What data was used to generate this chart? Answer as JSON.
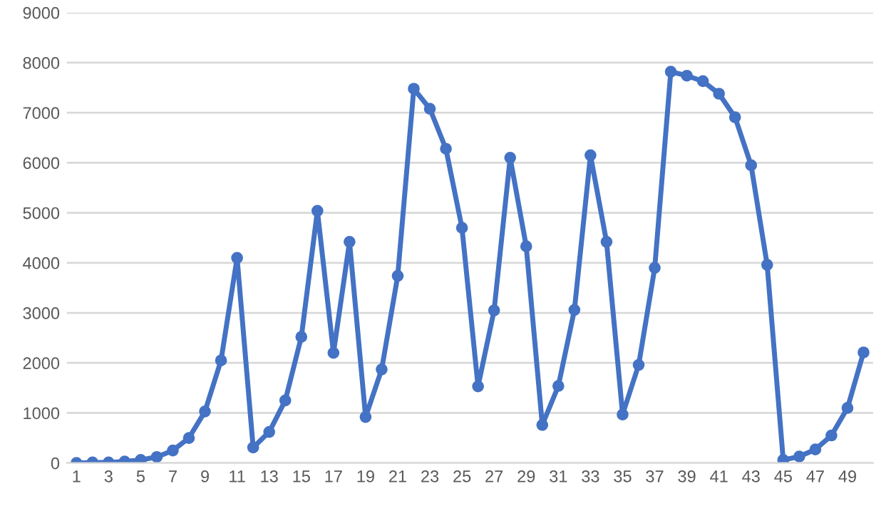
{
  "chart_data": {
    "type": "line",
    "categories": [
      "1",
      null,
      "3",
      null,
      "5",
      null,
      "7",
      null,
      "9",
      null,
      "11",
      null,
      "13",
      null,
      "15",
      null,
      "17",
      null,
      "19",
      null,
      "21",
      null,
      "23",
      null,
      "25",
      null,
      "27",
      null,
      "29",
      null,
      "31",
      null,
      "33",
      null,
      "35",
      null,
      "37",
      null,
      "39",
      null,
      "41",
      null,
      "43",
      null,
      "45",
      null,
      "47",
      null,
      "49",
      null
    ],
    "series": [
      {
        "color": "#4472c4",
        "values": [
          0,
          10,
          10,
          30,
          60,
          120,
          250,
          500,
          1030,
          2050,
          4100,
          310,
          620,
          1250,
          2520,
          5040,
          2200,
          4420,
          920,
          1870,
          3740,
          7480,
          7080,
          6280,
          4700,
          1530,
          3050,
          6100,
          4330,
          760,
          1540,
          3060,
          6150,
          4420,
          970,
          1960,
          3900,
          7820,
          7740,
          7630,
          7380,
          6910,
          5950,
          3960,
          60,
          130,
          270,
          550,
          1100,
          2210
        ]
      }
    ],
    "ylim": [
      0,
      9000
    ],
    "yticks": [
      0,
      1000,
      2000,
      3000,
      4000,
      5000,
      6000,
      7000,
      8000,
      9000
    ],
    "grid": "y",
    "marker": "circle",
    "line_style": "solid"
  }
}
